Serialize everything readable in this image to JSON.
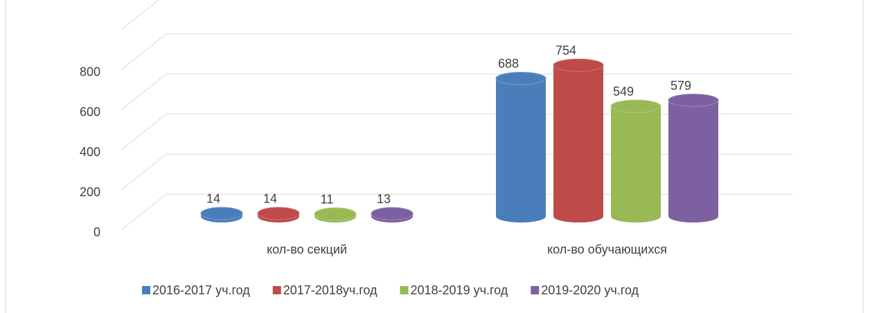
{
  "chart_data": {
    "type": "bar3d",
    "categories": [
      "кол-во секций",
      "кол-во обучающихся"
    ],
    "series": [
      {
        "name": "2016-2017 уч.год",
        "color": "#4a7ebb",
        "values": [
          14,
          688
        ]
      },
      {
        "name": "2017-2018уч.год",
        "color": "#be4b48",
        "values": [
          14,
          754
        ]
      },
      {
        "name": "2018-2019 уч.год",
        "color": "#98b954",
        "values": [
          11,
          549
        ]
      },
      {
        "name": "2019-2020 уч.год",
        "color": "#7d60a0",
        "values": [
          13,
          579
        ]
      }
    ],
    "ylim": [
      0,
      1000
    ],
    "yticks": [
      0,
      200,
      400,
      600,
      800
    ],
    "grid": true,
    "legend": "bottom"
  }
}
